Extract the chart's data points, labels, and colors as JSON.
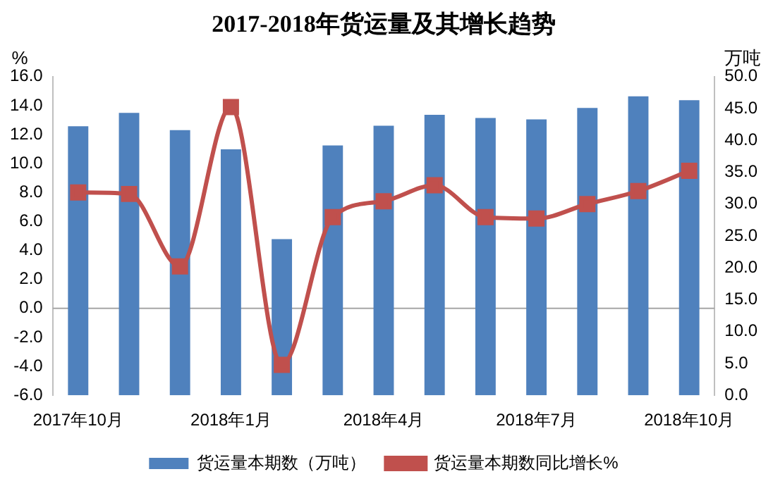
{
  "chart_data": {
    "type": "bar",
    "title": "2017-2018年货运量及其增长趋势",
    "ylabel": "%",
    "y2label": "万吨",
    "categories": [
      "2017年10月",
      null,
      null,
      "2018年1月",
      null,
      null,
      "2018年4月",
      null,
      null,
      "2018年7月",
      null,
      null,
      "2018年10月"
    ],
    "series": [
      {
        "name": "货运量本期数（万吨）",
        "axis": "y2",
        "color": "#4f81bd",
        "values": [
          42.2,
          44.3,
          41.6,
          38.6,
          24.5,
          39.2,
          42.3,
          44.0,
          43.5,
          43.3,
          45.1,
          46.9,
          46.3
        ]
      },
      {
        "name": "货运量本期数同比增长%",
        "type": "line",
        "axis": "y",
        "color": "#c0504d",
        "marker": "square",
        "values": [
          8.0,
          7.9,
          2.9,
          13.9,
          -3.9,
          6.3,
          7.4,
          8.5,
          6.3,
          6.2,
          7.2,
          8.1,
          9.5
        ]
      }
    ],
    "ylim": [
      -6,
      16
    ],
    "yticks": [
      {
        "value": -6,
        "label": "-6.0"
      },
      {
        "value": -4,
        "label": "-4.0"
      },
      {
        "value": -2,
        "label": "-2.0"
      },
      {
        "value": 0,
        "label": "0.0"
      },
      {
        "value": 2,
        "label": "2.0"
      },
      {
        "value": 4,
        "label": "4.0"
      },
      {
        "value": 6,
        "label": "6.0"
      },
      {
        "value": 8,
        "label": "8.0"
      },
      {
        "value": 10,
        "label": "10.0"
      },
      {
        "value": 12,
        "label": "12.0"
      },
      {
        "value": 14,
        "label": "14.0"
      },
      {
        "value": 16,
        "label": "16.0"
      }
    ],
    "y2lim": [
      0,
      50
    ],
    "y2ticks": [
      {
        "value": 0,
        "label": "0.0"
      },
      {
        "value": 5,
        "label": "5.0"
      },
      {
        "value": 10,
        "label": "10.0"
      },
      {
        "value": 15,
        "label": "15.0"
      },
      {
        "value": 20,
        "label": "20.0"
      },
      {
        "value": 25,
        "label": "25.0"
      },
      {
        "value": 30,
        "label": "30.0"
      },
      {
        "value": 35,
        "label": "35.0"
      },
      {
        "value": 40,
        "label": "40.0"
      },
      {
        "value": 45,
        "label": "45.0"
      },
      {
        "value": 50,
        "label": "50.0"
      }
    ],
    "ref_lines": [
      {
        "axis": "y",
        "value": 0,
        "color": "#a6a6a6"
      }
    ],
    "grid": false,
    "legend": "bottom"
  }
}
